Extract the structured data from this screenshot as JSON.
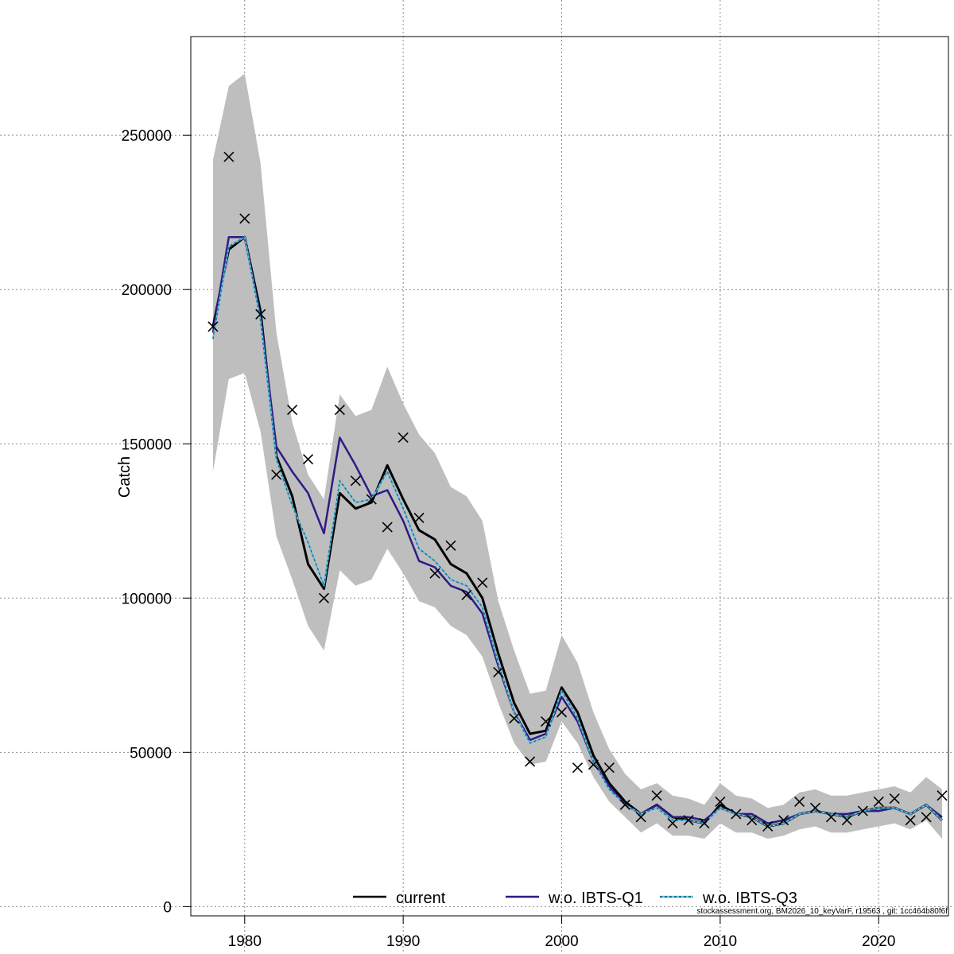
{
  "chart_data": {
    "type": "line",
    "xlabel": "",
    "ylabel": "Catch",
    "xlim": [
      1976.6,
      2024.4
    ],
    "ylim": [
      -3000,
      282000
    ],
    "x_ticks": [
      1980,
      1990,
      2000,
      2010,
      2020
    ],
    "x_tick_labels": [
      "1980",
      "1990",
      "2000",
      "2010",
      "2020"
    ],
    "y_ticks": [
      0,
      50000,
      100000,
      150000,
      200000,
      250000
    ],
    "y_tick_labels": [
      "0",
      "50000",
      "100000",
      "150000",
      "200000",
      "250000"
    ],
    "grid": true,
    "legend_position": "bottom",
    "colors": {
      "band": "#bebebe",
      "current": "#000000",
      "woQ1": "#2e1a87",
      "woQ3": "#5fc3e8",
      "woQ3_dash": "#1f6f82",
      "observed": "#000000",
      "grid": "#8c8c8c"
    },
    "x": [
      1978,
      1979,
      1980,
      1981,
      1982,
      1983,
      1984,
      1985,
      1986,
      1987,
      1988,
      1989,
      1990,
      1991,
      1992,
      1993,
      1994,
      1995,
      1996,
      1997,
      1998,
      1999,
      2000,
      2001,
      2002,
      2003,
      2004,
      2005,
      2006,
      2007,
      2008,
      2009,
      2010,
      2011,
      2012,
      2013,
      2014,
      2015,
      2016,
      2017,
      2018,
      2019,
      2020,
      2021,
      2022,
      2023,
      2024
    ],
    "confidence_band": {
      "upper": [
        242000,
        266000,
        270000,
        241000,
        186000,
        157000,
        140000,
        132000,
        166000,
        159000,
        161000,
        175000,
        163000,
        153000,
        147000,
        136000,
        133000,
        125000,
        99000,
        83000,
        69000,
        70000,
        88000,
        79000,
        63000,
        51000,
        43000,
        38000,
        40000,
        36000,
        35000,
        33000,
        40000,
        36000,
        35000,
        32000,
        33000,
        37000,
        38000,
        36000,
        36000,
        37000,
        38000,
        39000,
        37000,
        42000,
        38000
      ],
      "lower": [
        141000,
        171000,
        173000,
        154000,
        120000,
        106000,
        91000,
        83000,
        109000,
        104000,
        106000,
        116000,
        108000,
        99000,
        97000,
        91000,
        88000,
        81000,
        66000,
        53000,
        46000,
        47000,
        60000,
        53000,
        42000,
        34000,
        29000,
        24000,
        27000,
        23000,
        23000,
        22000,
        27000,
        24000,
        24000,
        22000,
        23000,
        25000,
        26000,
        24000,
        24000,
        25000,
        26000,
        27000,
        25000,
        28000,
        22000
      ]
    },
    "series": [
      {
        "name": "current",
        "values": [
          188000,
          213000,
          217000,
          193000,
          146000,
          133000,
          111000,
          103000,
          134000,
          129000,
          131000,
          143000,
          132000,
          122000,
          119000,
          111000,
          108000,
          100000,
          82000,
          66000,
          56000,
          57000,
          71000,
          63000,
          49000,
          40000,
          34000,
          30000,
          33000,
          29000,
          28000,
          27000,
          33000,
          30000,
          29000,
          26000,
          27000,
          30000,
          31000,
          30000,
          29000,
          31000,
          32000,
          32000,
          30000,
          33000,
          28000
        ]
      },
      {
        "name": "w.o. IBTS-Q1",
        "values": [
          186000,
          217000,
          217000,
          191000,
          149000,
          141000,
          134000,
          121000,
          152000,
          143000,
          133000,
          135000,
          125000,
          112000,
          110000,
          104000,
          102000,
          95000,
          78000,
          63000,
          54000,
          56000,
          68000,
          60000,
          47000,
          39000,
          33000,
          30000,
          33000,
          29000,
          29000,
          28000,
          32000,
          30000,
          30000,
          27000,
          28000,
          30000,
          31000,
          30000,
          30000,
          31000,
          31000,
          32000,
          30000,
          33000,
          29000
        ]
      },
      {
        "name": "w.o. IBTS-Q3",
        "values": [
          184000,
          214000,
          217000,
          190000,
          145000,
          130000,
          118000,
          104000,
          138000,
          131000,
          132000,
          141000,
          129000,
          116000,
          112000,
          106000,
          104000,
          97000,
          79000,
          63000,
          53000,
          55000,
          70000,
          61000,
          47000,
          38000,
          33000,
          30000,
          32000,
          28000,
          28000,
          27000,
          32000,
          30000,
          29000,
          26000,
          27000,
          30000,
          31000,
          30000,
          29000,
          31000,
          32000,
          32000,
          30000,
          33000,
          28000
        ]
      }
    ],
    "observed": [
      188000,
      243000,
      223000,
      192000,
      140000,
      161000,
      145000,
      100000,
      161000,
      138000,
      132000,
      123000,
      152000,
      126000,
      108000,
      117000,
      101000,
      105000,
      76000,
      61000,
      47000,
      60000,
      63000,
      45000,
      46000,
      45000,
      33000,
      29000,
      36000,
      27000,
      28000,
      27000,
      34000,
      30000,
      28000,
      26000,
      28000,
      34000,
      32000,
      29000,
      28000,
      31000,
      34000,
      35000,
      28000,
      29000,
      36000
    ],
    "legend": [
      "current",
      "w.o. IBTS-Q1",
      "w.o. IBTS-Q3"
    ]
  },
  "footer_note": "stockassessment.org, BM2026_10_keyVarF, r19563 , git: 1cc464b80f6f"
}
